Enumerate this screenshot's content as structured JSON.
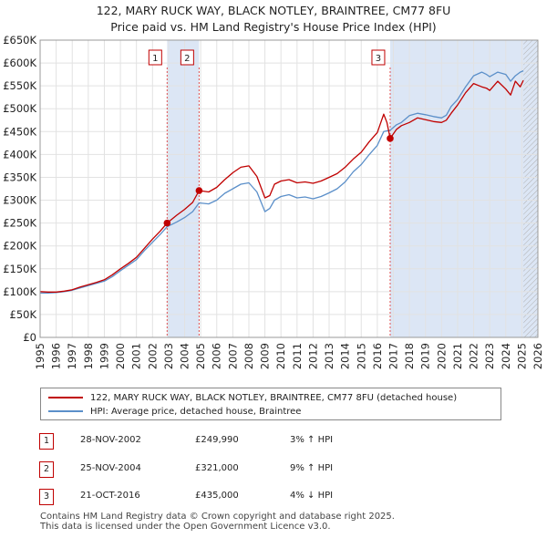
{
  "chart_data": {
    "type": "line",
    "title": "122, MARY RUCK WAY, BLACK NOTLEY, BRAINTREE, CM77 8FU",
    "subtitle": "Price paid vs. HM Land Registry's House Price Index (HPI)",
    "xlim": [
      1995,
      2026
    ],
    "ylim": [
      0,
      650000
    ],
    "x_ticks": [
      1995,
      1996,
      1997,
      1998,
      1999,
      2000,
      2001,
      2002,
      2003,
      2004,
      2005,
      2006,
      2007,
      2008,
      2009,
      2010,
      2011,
      2012,
      2013,
      2014,
      2015,
      2016,
      2017,
      2018,
      2019,
      2020,
      2021,
      2022,
      2023,
      2024,
      2025,
      2026
    ],
    "y_ticks": [
      {
        "value": 0,
        "label": "£0"
      },
      {
        "value": 50000,
        "label": "£50K"
      },
      {
        "value": 100000,
        "label": "£100K"
      },
      {
        "value": 150000,
        "label": "£150K"
      },
      {
        "value": 200000,
        "label": "£200K"
      },
      {
        "value": 250000,
        "label": "£250K"
      },
      {
        "value": 300000,
        "label": "£300K"
      },
      {
        "value": 350000,
        "label": "£350K"
      },
      {
        "value": 400000,
        "label": "£400K"
      },
      {
        "value": 450000,
        "label": "£450K"
      },
      {
        "value": 500000,
        "label": "£500K"
      },
      {
        "value": 550000,
        "label": "£550K"
      },
      {
        "value": 600000,
        "label": "£600K"
      },
      {
        "value": 650000,
        "label": "£650K"
      }
    ],
    "grid": true,
    "shaded_ranges": [
      [
        2002.91,
        2004.9
      ],
      [
        2016.8,
        2026
      ]
    ],
    "hatched_range": [
      2025.1,
      2026
    ],
    "series": [
      {
        "name": "122, MARY RUCK WAY, BLACK NOTLEY, BRAINTREE, CM77 8FU (detached house)",
        "color": "#c00000",
        "x": [
          1995,
          1995.5,
          1996,
          1996.5,
          1997,
          1997.5,
          1998,
          1998.5,
          1999,
          1999.5,
          2000,
          2000.5,
          2001,
          2001.5,
          2002,
          2002.5,
          2002.91,
          2003.5,
          2004,
          2004.5,
          2004.9,
          2005.5,
          2006,
          2006.5,
          2007,
          2007.5,
          2008,
          2008.5,
          2009,
          2009.3,
          2009.6,
          2010,
          2010.5,
          2011,
          2011.5,
          2012,
          2012.5,
          2013,
          2013.5,
          2014,
          2014.5,
          2015,
          2015.5,
          2016,
          2016.4,
          2016.6,
          2016.8,
          2017.2,
          2017.5,
          2018,
          2018.5,
          2019,
          2019.5,
          2020,
          2020.3,
          2020.6,
          2021,
          2021.5,
          2022,
          2022.5,
          2022.8,
          2023,
          2023.5,
          2024,
          2024.3,
          2024.6,
          2024.9,
          2025.1
        ],
        "y": [
          100000,
          99000,
          99000,
          101000,
          104000,
          110000,
          115000,
          120000,
          126000,
          137000,
          150000,
          162000,
          175000,
          195000,
          215000,
          233000,
          249990,
          267000,
          280000,
          295000,
          321000,
          318000,
          328000,
          345000,
          360000,
          372000,
          375000,
          352000,
          305000,
          310000,
          335000,
          342000,
          345000,
          338000,
          340000,
          337000,
          342000,
          350000,
          358000,
          372000,
          390000,
          405000,
          428000,
          448000,
          488000,
          470000,
          435000,
          455000,
          463000,
          470000,
          480000,
          476000,
          472000,
          470000,
          475000,
          490000,
          508000,
          535000,
          555000,
          548000,
          545000,
          540000,
          560000,
          543000,
          530000,
          560000,
          548000,
          562000
        ]
      },
      {
        "name": "HPI: Average price, detached house, Braintree",
        "color": "#5b8fc9",
        "x": [
          1995,
          1995.5,
          1996,
          1996.5,
          1997,
          1997.5,
          1998,
          1998.5,
          1999,
          1999.5,
          2000,
          2000.5,
          2001,
          2001.5,
          2002,
          2002.5,
          2002.91,
          2003.5,
          2004,
          2004.5,
          2004.9,
          2005.5,
          2006,
          2006.5,
          2007,
          2007.5,
          2008,
          2008.5,
          2009,
          2009.3,
          2009.6,
          2010,
          2010.5,
          2011,
          2011.5,
          2012,
          2012.5,
          2013,
          2013.5,
          2014,
          2014.5,
          2015,
          2015.5,
          2016,
          2016.4,
          2016.8,
          2017.2,
          2017.5,
          2018,
          2018.5,
          2019,
          2019.5,
          2020,
          2020.3,
          2020.6,
          2021,
          2021.5,
          2022,
          2022.5,
          2022.8,
          2023,
          2023.5,
          2024,
          2024.3,
          2024.6,
          2024.9,
          2025.1
        ],
        "y": [
          97000,
          97000,
          98000,
          100000,
          103000,
          108000,
          113000,
          118000,
          123000,
          133000,
          146000,
          158000,
          170000,
          190000,
          208000,
          226000,
          242000,
          252000,
          262000,
          275000,
          294000,
          292000,
          300000,
          315000,
          325000,
          335000,
          338000,
          318000,
          275000,
          282000,
          300000,
          308000,
          312000,
          305000,
          307000,
          303000,
          308000,
          316000,
          325000,
          340000,
          362000,
          378000,
          400000,
          420000,
          450000,
          453000,
          465000,
          470000,
          485000,
          490000,
          487000,
          483000,
          480000,
          486000,
          505000,
          520000,
          548000,
          572000,
          580000,
          575000,
          570000,
          580000,
          575000,
          560000,
          572000,
          580000,
          583000
        ]
      }
    ],
    "markers": [
      {
        "label": "1",
        "x": 2002.91,
        "y": 249990
      },
      {
        "label": "2",
        "x": 2004.9,
        "y": 321000
      },
      {
        "label": "3",
        "x": 2016.8,
        "y": 435000
      }
    ]
  },
  "legend": {
    "items": [
      {
        "label": "122, MARY RUCK WAY, BLACK NOTLEY, BRAINTREE, CM77 8FU (detached house)",
        "color": "#c00000"
      },
      {
        "label": "HPI: Average price, detached house, Braintree",
        "color": "#5b8fc9"
      }
    ]
  },
  "sales": [
    {
      "num": "1",
      "date": "28-NOV-2002",
      "price": "£249,990",
      "hpi": "3% ↑ HPI"
    },
    {
      "num": "2",
      "date": "25-NOV-2004",
      "price": "£321,000",
      "hpi": "9% ↑ HPI"
    },
    {
      "num": "3",
      "date": "21-OCT-2016",
      "price": "£435,000",
      "hpi": "4% ↓ HPI"
    }
  ],
  "footer": {
    "line1": "Contains HM Land Registry data © Crown copyright and database right 2025.",
    "line2": "This data is licensed under the Open Government Licence v3.0."
  }
}
